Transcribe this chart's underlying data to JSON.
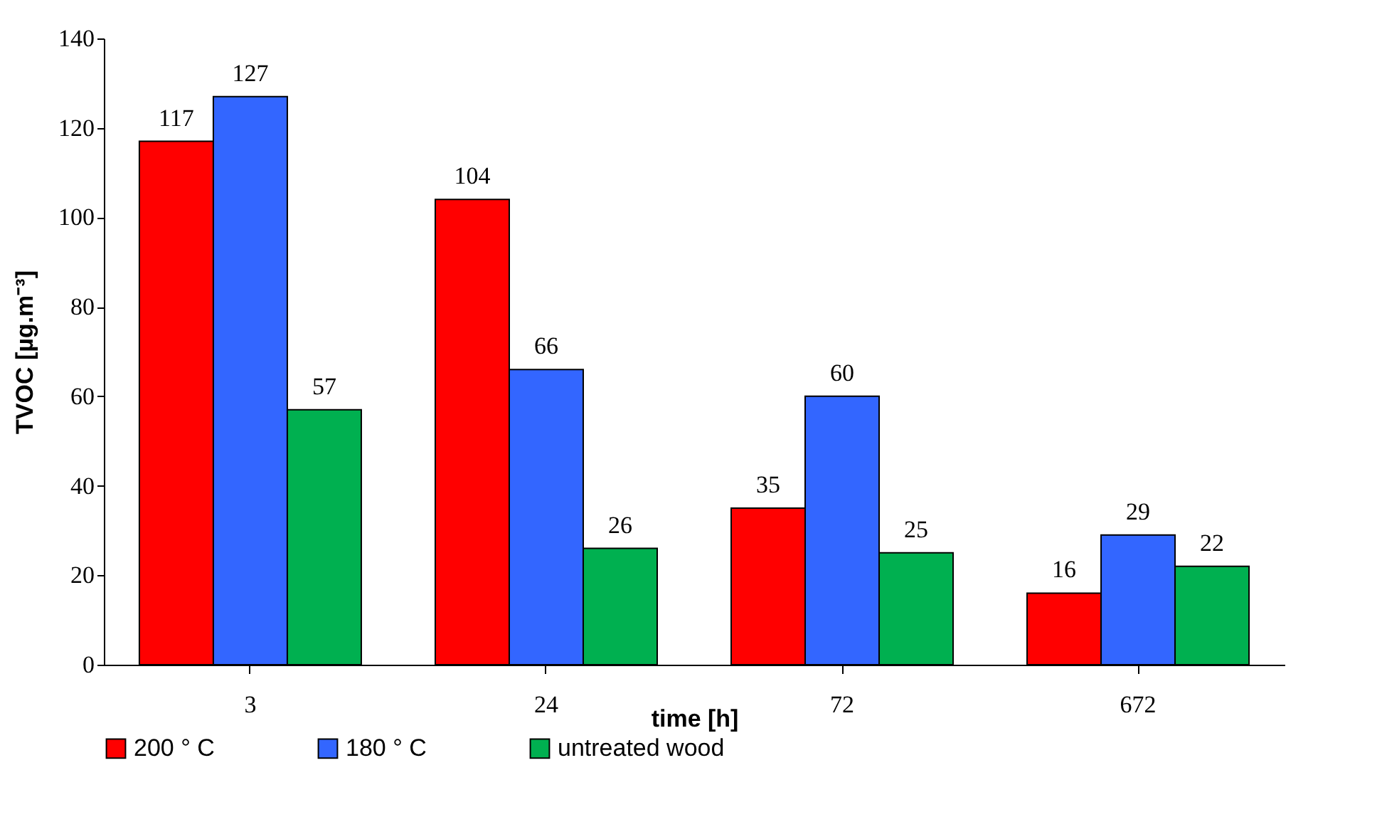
{
  "chart_data": {
    "type": "bar",
    "xlabel": "time [h]",
    "ylabel": "TVOC [µg.m⁻³]",
    "categories": [
      "3",
      "24",
      "72",
      "672"
    ],
    "series": [
      {
        "name": "200 ° C",
        "color": "#ff0000",
        "values": [
          117,
          104,
          35,
          16
        ]
      },
      {
        "name": "180 ° C",
        "color": "#3366ff",
        "values": [
          127,
          66,
          60,
          29
        ]
      },
      {
        "name": "untreated wood",
        "color": "#00b050",
        "values": [
          57,
          26,
          25,
          22
        ]
      }
    ],
    "ylim": [
      0,
      140
    ],
    "yticks": [
      0,
      20,
      40,
      60,
      80,
      100,
      120,
      140
    ],
    "grid": false,
    "legend": "bottom",
    "data_labels": true
  }
}
